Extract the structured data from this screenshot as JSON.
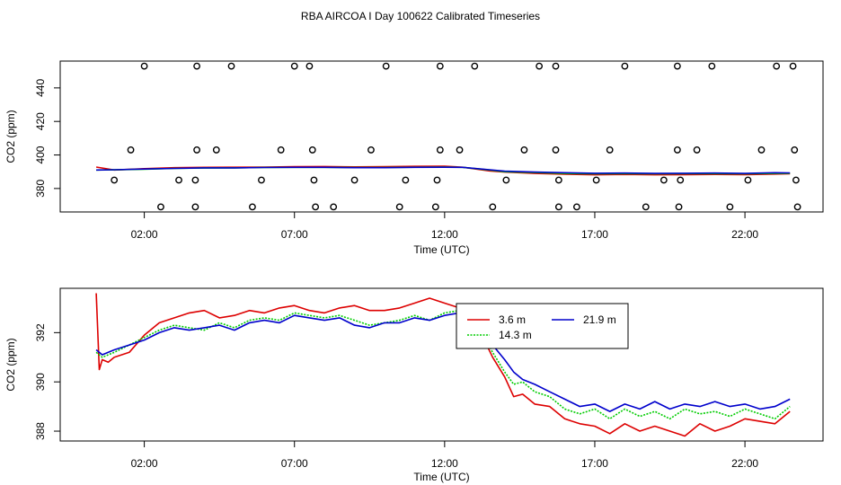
{
  "page": {
    "title": "RBA AIRCOA I  Day 100622  Calibrated Timeseries"
  },
  "colors": {
    "red": "#dd0000",
    "green": "#00cc00",
    "blue": "#0000cc",
    "black": "#000000"
  },
  "chart_data": [
    {
      "type": "scatter",
      "id": "top",
      "xlabel": "Time (UTC)",
      "ylabel": "CO2 (ppm)",
      "xlim": [
        -0.8,
        24.6
      ],
      "ylim": [
        366,
        456
      ],
      "xticks": [
        2,
        7,
        12,
        17,
        22
      ],
      "xtick_labels": [
        "02:00",
        "07:00",
        "12:00",
        "17:00",
        "22:00"
      ],
      "yticks": [
        380,
        400,
        420,
        440
      ],
      "ytick_labels": [
        "380",
        "400",
        "420",
        "440"
      ],
      "calibration_points": {
        "name": "calibration standards",
        "x": [
          2.0,
          3.75,
          4.9,
          7.0,
          7.5,
          10.05,
          11.85,
          13.0,
          15.15,
          15.7,
          18.0,
          19.75,
          20.9,
          23.05,
          23.6,
          1.55,
          3.75,
          4.4,
          6.55,
          7.6,
          9.55,
          11.85,
          12.5,
          14.65,
          15.7,
          17.5,
          19.75,
          20.4,
          22.55,
          23.65,
          1.0,
          3.15,
          3.7,
          5.9,
          7.65,
          9.0,
          10.7,
          11.75,
          14.05,
          15.8,
          17.05,
          19.3,
          19.85,
          22.1,
          23.7,
          2.55,
          3.7,
          5.6,
          7.7,
          8.3,
          10.5,
          11.7,
          13.6,
          15.8,
          16.4,
          18.7,
          19.8,
          21.5,
          23.75
        ],
        "y": [
          453,
          453,
          453,
          453,
          453,
          453,
          453,
          453,
          453,
          453,
          453,
          453,
          453,
          453,
          453,
          403,
          403,
          403,
          403,
          403,
          403,
          403,
          403,
          403,
          403,
          403,
          403,
          403,
          403,
          403,
          385,
          385,
          385,
          385,
          385,
          385,
          385,
          385,
          385,
          385,
          385,
          385,
          385,
          385,
          385,
          369,
          369,
          369,
          369,
          369,
          369,
          369,
          369,
          369,
          369,
          369,
          369,
          369,
          369
        ]
      },
      "series": [
        {
          "name": "3.6 m",
          "color": "red",
          "x": [
            0.4,
            1.0,
            2.0,
            3.0,
            4.0,
            5.0,
            6.0,
            7.0,
            8.0,
            9.0,
            10.0,
            11.0,
            12.0,
            12.6,
            13.5,
            14.0,
            15.0,
            16.0,
            17.0,
            18.0,
            19.0,
            20.0,
            21.0,
            22.0,
            23.0,
            23.5
          ],
          "y": [
            392.8,
            391.0,
            391.8,
            392.4,
            392.6,
            392.7,
            392.8,
            393.0,
            393.1,
            392.9,
            393.0,
            393.2,
            393.3,
            392.7,
            390.5,
            389.8,
            389.0,
            388.5,
            388.2,
            388.4,
            388.2,
            388.3,
            388.4,
            388.3,
            388.6,
            388.8
          ]
        },
        {
          "name": "14.3 m",
          "color": "green",
          "x": [
            0.4,
            1.0,
            2.0,
            3.0,
            4.0,
            5.0,
            6.0,
            7.0,
            8.0,
            9.0,
            10.0,
            11.0,
            12.0,
            12.6,
            13.5,
            14.0,
            15.0,
            16.0,
            17.0,
            18.0,
            19.0,
            20.0,
            21.0,
            22.0,
            23.0,
            23.5
          ],
          "y": [
            391.0,
            391.1,
            391.5,
            392.0,
            392.2,
            392.3,
            392.5,
            392.6,
            392.6,
            392.5,
            392.5,
            392.7,
            392.8,
            392.6,
            391.0,
            390.0,
            389.5,
            389.0,
            388.8,
            388.9,
            388.8,
            388.9,
            388.9,
            388.8,
            389.0,
            389.1
          ]
        },
        {
          "name": "21.9 m",
          "color": "blue",
          "x": [
            0.4,
            1.0,
            2.0,
            3.0,
            4.0,
            5.0,
            6.0,
            7.0,
            8.0,
            9.0,
            10.0,
            11.0,
            12.0,
            12.6,
            13.5,
            14.0,
            15.0,
            16.0,
            17.0,
            18.0,
            19.0,
            20.0,
            21.0,
            22.0,
            23.0,
            23.5
          ],
          "y": [
            391.0,
            391.2,
            391.6,
            392.0,
            392.3,
            392.3,
            392.5,
            392.6,
            392.6,
            392.4,
            392.4,
            392.6,
            392.7,
            392.6,
            391.2,
            390.3,
            389.8,
            389.4,
            389.1,
            389.2,
            389.0,
            389.1,
            389.2,
            389.0,
            389.4,
            389.3
          ]
        }
      ]
    },
    {
      "type": "line",
      "id": "bottom",
      "xlabel": "Time (UTC)",
      "ylabel": "CO2 (ppm)",
      "xlim": [
        -0.8,
        24.6
      ],
      "ylim": [
        387.6,
        393.8
      ],
      "xticks": [
        2,
        7,
        12,
        17,
        22
      ],
      "xtick_labels": [
        "02:00",
        "07:00",
        "12:00",
        "17:00",
        "22:00"
      ],
      "yticks": [
        388,
        390,
        392
      ],
      "ytick_labels": [
        "388",
        "390",
        "392"
      ],
      "legend": {
        "placement": "center-right",
        "entries": [
          "3.6 m",
          "14.3 m",
          "21.9 m"
        ]
      },
      "series": [
        {
          "name": "3.6 m",
          "color": "red",
          "dash": "solid",
          "x": [
            0.4,
            0.5,
            0.6,
            0.8,
            1.0,
            1.5,
            2.0,
            2.5,
            3.0,
            3.5,
            4.0,
            4.5,
            5.0,
            5.5,
            6.0,
            6.5,
            7.0,
            7.5,
            8.0,
            8.5,
            9.0,
            9.5,
            10.0,
            10.5,
            11.0,
            11.5,
            12.0,
            12.5,
            12.8,
            13.2,
            13.6,
            14.0,
            14.3,
            14.6,
            15.0,
            15.5,
            16.0,
            16.5,
            17.0,
            17.5,
            18.0,
            18.5,
            19.0,
            19.5,
            20.0,
            20.5,
            21.0,
            21.5,
            22.0,
            22.5,
            23.0,
            23.5
          ],
          "y": [
            393.6,
            390.5,
            390.9,
            390.8,
            391.0,
            391.2,
            391.9,
            392.4,
            392.6,
            392.8,
            392.9,
            392.6,
            392.7,
            392.9,
            392.8,
            393.0,
            393.1,
            392.9,
            392.8,
            393.0,
            393.1,
            392.9,
            392.9,
            393.0,
            393.2,
            393.4,
            393.2,
            393.0,
            392.6,
            392.0,
            391.0,
            390.2,
            389.4,
            389.5,
            389.1,
            389.0,
            388.5,
            388.3,
            388.2,
            387.9,
            388.3,
            388.0,
            388.2,
            388.0,
            387.8,
            388.3,
            388.0,
            388.2,
            388.5,
            388.4,
            388.3,
            388.8
          ]
        },
        {
          "name": "14.3 m",
          "color": "green",
          "dash": "dotted",
          "x": [
            0.4,
            0.6,
            0.8,
            1.0,
            1.5,
            2.0,
            2.5,
            3.0,
            3.5,
            4.0,
            4.5,
            5.0,
            5.5,
            6.0,
            6.5,
            7.0,
            7.5,
            8.0,
            8.5,
            9.0,
            9.5,
            10.0,
            10.5,
            11.0,
            11.5,
            12.0,
            12.5,
            12.8,
            13.2,
            13.6,
            14.0,
            14.3,
            14.6,
            15.0,
            15.5,
            16.0,
            16.5,
            17.0,
            17.5,
            18.0,
            18.5,
            19.0,
            19.5,
            20.0,
            20.5,
            21.0,
            21.5,
            22.0,
            22.5,
            23.0,
            23.5
          ],
          "y": [
            391.2,
            391.0,
            391.1,
            391.2,
            391.5,
            391.8,
            392.1,
            392.3,
            392.2,
            392.1,
            392.4,
            392.2,
            392.5,
            392.6,
            392.5,
            392.8,
            392.7,
            392.6,
            392.7,
            392.5,
            392.3,
            392.4,
            392.5,
            392.7,
            392.5,
            392.8,
            392.9,
            392.7,
            392.1,
            391.2,
            390.4,
            389.9,
            390.0,
            389.6,
            389.4,
            388.9,
            388.7,
            388.9,
            388.5,
            388.9,
            388.6,
            388.8,
            388.5,
            388.9,
            388.7,
            388.8,
            388.6,
            388.9,
            388.7,
            388.5,
            389.0
          ]
        },
        {
          "name": "21.9 m",
          "color": "blue",
          "dash": "solid",
          "x": [
            0.4,
            0.6,
            0.8,
            1.0,
            1.5,
            2.0,
            2.5,
            3.0,
            3.5,
            4.0,
            4.5,
            5.0,
            5.5,
            6.0,
            6.5,
            7.0,
            7.5,
            8.0,
            8.5,
            9.0,
            9.5,
            10.0,
            10.5,
            11.0,
            11.5,
            12.0,
            12.5,
            12.8,
            13.2,
            13.6,
            14.0,
            14.3,
            14.6,
            15.0,
            15.5,
            16.0,
            16.5,
            17.0,
            17.5,
            18.0,
            18.5,
            19.0,
            19.5,
            20.0,
            20.5,
            21.0,
            21.5,
            22.0,
            22.5,
            23.0,
            23.5
          ],
          "y": [
            391.3,
            391.1,
            391.2,
            391.3,
            391.5,
            391.7,
            392.0,
            392.2,
            392.1,
            392.2,
            392.3,
            392.1,
            392.4,
            392.5,
            392.4,
            392.7,
            392.6,
            392.5,
            392.6,
            392.3,
            392.2,
            392.4,
            392.4,
            392.6,
            392.5,
            392.7,
            392.8,
            392.7,
            392.3,
            391.5,
            390.9,
            390.4,
            390.1,
            389.9,
            389.6,
            389.3,
            389.0,
            389.1,
            388.8,
            389.1,
            388.9,
            389.2,
            388.9,
            389.1,
            389.0,
            389.2,
            389.0,
            389.1,
            388.9,
            389.0,
            389.3
          ]
        }
      ]
    }
  ]
}
